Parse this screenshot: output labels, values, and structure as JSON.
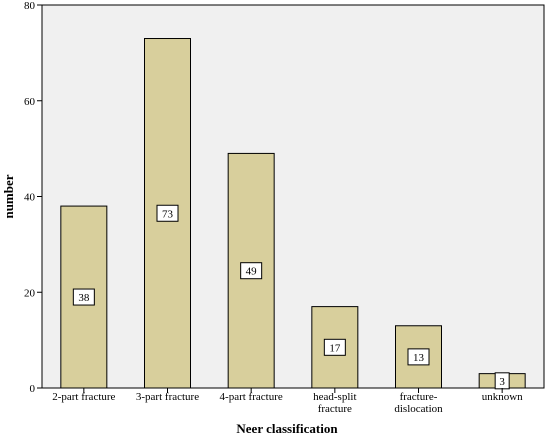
{
  "chart_data": {
    "type": "bar",
    "categories": [
      "2-part fracture",
      "3-part fracture",
      "4-part fracture",
      "head-split fracture",
      "fracture-dislocation",
      "unknown"
    ],
    "category_label_lines": [
      [
        "2-part fracture"
      ],
      [
        "3-part fracture"
      ],
      [
        "4-part fracture"
      ],
      [
        "head-split",
        "fracture"
      ],
      [
        "fracture-",
        "dislocation"
      ],
      [
        "unknown"
      ]
    ],
    "values": [
      38,
      73,
      49,
      17,
      13,
      3
    ],
    "data_labels": [
      "38",
      "73",
      "49",
      "17",
      "13",
      "3"
    ],
    "xlabel": "Neer classification",
    "ylabel": "number",
    "ylim": [
      0,
      80
    ],
    "yticks": [
      0,
      20,
      40,
      60,
      80
    ],
    "grid": false,
    "legend": "none"
  },
  "colors": {
    "plot_background": "#f0f0f0",
    "bar_fill": "#d8cf9c",
    "bar_stroke": "#000000",
    "axis": "#000000"
  }
}
